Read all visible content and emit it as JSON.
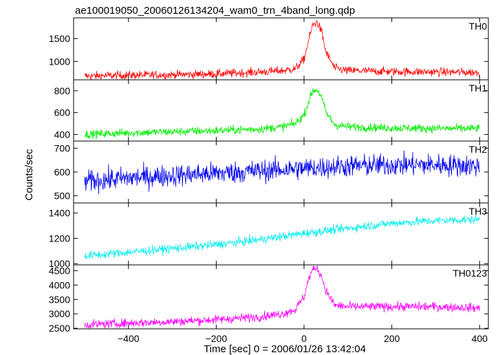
{
  "title": "ae100019050_20060126134204_wam0_trn_4band_long.qdp",
  "ylabel": "Counts/sec",
  "xlabel": "Time [sec] 0 = 2006/01/26 13:42:04",
  "chart_data": [
    {
      "type": "line",
      "name": "TH0",
      "color": "#ff0000",
      "xlim": [
        -525,
        420
      ],
      "ylim": [
        600,
        1950
      ],
      "yticks": [
        1000,
        1500
      ],
      "x": [
        -500,
        -400,
        -300,
        -200,
        -100,
        -50,
        -20,
        0,
        10,
        20,
        30,
        40,
        50,
        70,
        100,
        200,
        300,
        400
      ],
      "y": [
        680,
        700,
        710,
        730,
        770,
        800,
        840,
        1050,
        1450,
        1800,
        1850,
        1650,
        1200,
        850,
        800,
        780,
        770,
        760
      ]
    },
    {
      "type": "line",
      "name": "TH1",
      "color": "#00ee00",
      "xlim": [
        -525,
        420
      ],
      "ylim": [
        340,
        900
      ],
      "yticks": [
        400,
        600,
        800
      ],
      "x": [
        -500,
        -400,
        -300,
        -200,
        -100,
        -50,
        -20,
        0,
        10,
        20,
        30,
        40,
        50,
        70,
        100,
        200,
        300,
        400
      ],
      "y": [
        400,
        415,
        425,
        435,
        450,
        470,
        500,
        580,
        700,
        800,
        810,
        740,
        600,
        490,
        470,
        460,
        455,
        455
      ]
    },
    {
      "type": "line",
      "name": "TH2",
      "color": "#0000ee",
      "xlim": [
        -525,
        420
      ],
      "ylim": [
        470,
        730
      ],
      "yticks": [
        500,
        600,
        700
      ],
      "x": [
        -500,
        -400,
        -300,
        -200,
        -100,
        0,
        100,
        200,
        300,
        400
      ],
      "y": [
        560,
        575,
        585,
        595,
        605,
        615,
        625,
        630,
        630,
        625
      ]
    },
    {
      "type": "line",
      "name": "TH3",
      "color": "#00eeee",
      "xlim": [
        -525,
        420
      ],
      "ylim": [
        990,
        1480
      ],
      "yticks": [
        1000,
        1200,
        1400
      ],
      "x": [
        -500,
        -400,
        -300,
        -200,
        -100,
        0,
        100,
        200,
        300,
        400
      ],
      "y": [
        1060,
        1090,
        1120,
        1150,
        1190,
        1240,
        1280,
        1320,
        1340,
        1350
      ]
    },
    {
      "type": "line",
      "name": "TH0123",
      "color": "#ff00ff",
      "xlim": [
        -525,
        420
      ],
      "ylim": [
        2480,
        4700
      ],
      "yticks": [
        2500,
        3000,
        3500,
        4000,
        4500
      ],
      "x": [
        -500,
        -400,
        -300,
        -200,
        -100,
        -50,
        -20,
        0,
        10,
        20,
        30,
        40,
        50,
        70,
        100,
        200,
        300,
        400
      ],
      "y": [
        2620,
        2680,
        2730,
        2800,
        2900,
        3000,
        3150,
        3600,
        4200,
        4550,
        4600,
        4300,
        3800,
        3300,
        3250,
        3250,
        3250,
        3200
      ]
    }
  ],
  "xticks": [
    -400,
    -200,
    0,
    200,
    400
  ]
}
